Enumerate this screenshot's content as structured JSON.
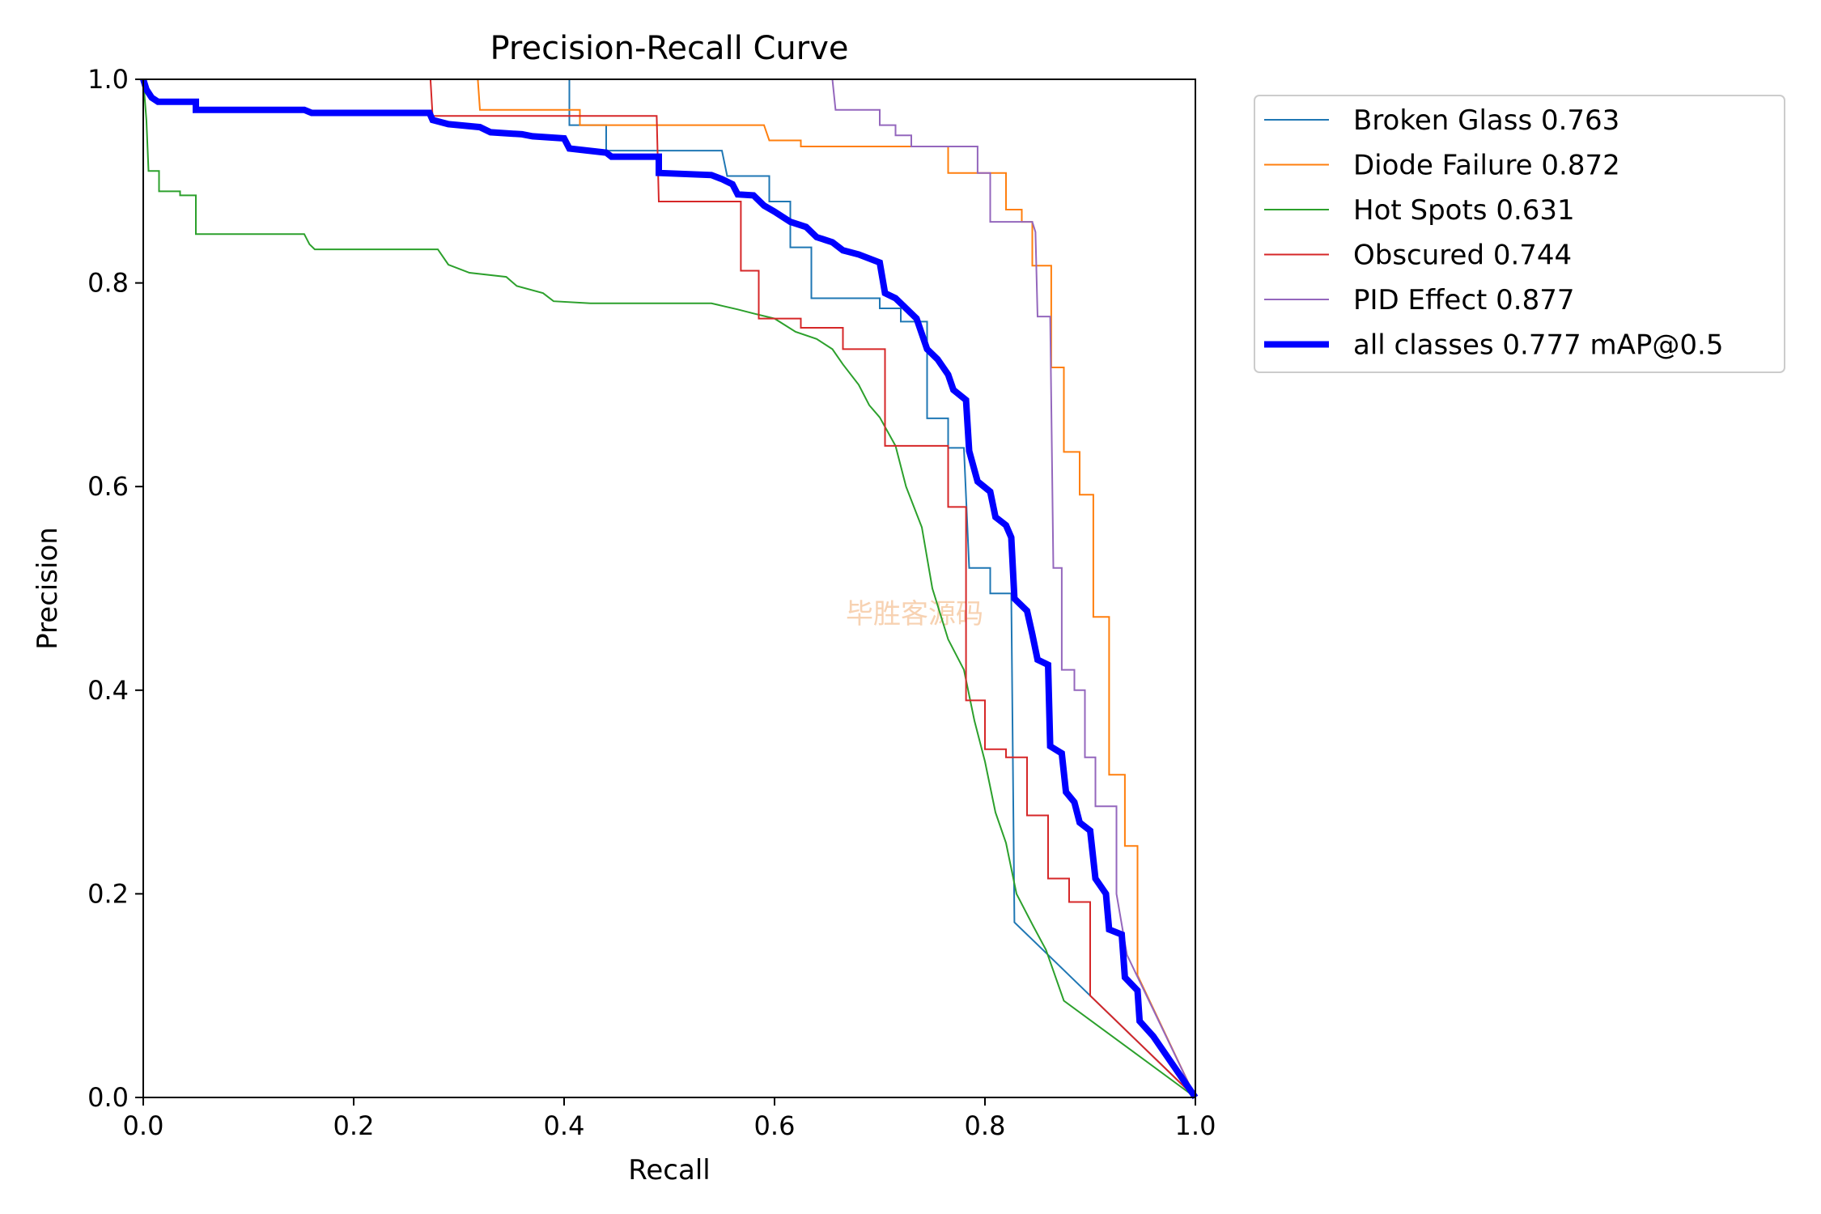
{
  "chart_data": {
    "type": "line",
    "title": "Precision-Recall Curve",
    "xlabel": "Recall",
    "ylabel": "Precision",
    "xlim": [
      0,
      1
    ],
    "ylim": [
      0,
      1
    ],
    "x_ticks": [
      "0.0",
      "0.2",
      "0.4",
      "0.6",
      "0.8",
      "1.0"
    ],
    "y_ticks": [
      "0.0",
      "0.2",
      "0.4",
      "0.6",
      "0.8",
      "1.0"
    ],
    "grid": false,
    "legend_position": "outside-top-right",
    "watermark": "毕胜客源码",
    "series": [
      {
        "name": "Broken Glass 0.763",
        "color": "#1f77b4",
        "width": 2,
        "points": [
          [
            0.0,
            1.0
          ],
          [
            0.4,
            1.0
          ],
          [
            0.405,
            1.0
          ],
          [
            0.405,
            0.955
          ],
          [
            0.44,
            0.955
          ],
          [
            0.44,
            0.93
          ],
          [
            0.55,
            0.93
          ],
          [
            0.555,
            0.905
          ],
          [
            0.595,
            0.905
          ],
          [
            0.595,
            0.88
          ],
          [
            0.615,
            0.88
          ],
          [
            0.615,
            0.835
          ],
          [
            0.635,
            0.835
          ],
          [
            0.635,
            0.785
          ],
          [
            0.7,
            0.785
          ],
          [
            0.7,
            0.775
          ],
          [
            0.72,
            0.775
          ],
          [
            0.72,
            0.762
          ],
          [
            0.745,
            0.762
          ],
          [
            0.745,
            0.667
          ],
          [
            0.765,
            0.667
          ],
          [
            0.765,
            0.638
          ],
          [
            0.78,
            0.638
          ],
          [
            0.785,
            0.52
          ],
          [
            0.805,
            0.52
          ],
          [
            0.805,
            0.495
          ],
          [
            0.825,
            0.495
          ],
          [
            0.828,
            0.172
          ],
          [
            0.9,
            0.1
          ],
          [
            1.0,
            0.0
          ]
        ]
      },
      {
        "name": "Diode Failure 0.872",
        "color": "#ff7f0e",
        "width": 2,
        "points": [
          [
            0.0,
            1.0
          ],
          [
            0.318,
            1.0
          ],
          [
            0.32,
            0.97
          ],
          [
            0.415,
            0.97
          ],
          [
            0.415,
            0.955
          ],
          [
            0.59,
            0.955
          ],
          [
            0.595,
            0.94
          ],
          [
            0.625,
            0.94
          ],
          [
            0.625,
            0.934
          ],
          [
            0.765,
            0.934
          ],
          [
            0.765,
            0.908
          ],
          [
            0.82,
            0.908
          ],
          [
            0.82,
            0.872
          ],
          [
            0.835,
            0.872
          ],
          [
            0.835,
            0.86
          ],
          [
            0.845,
            0.86
          ],
          [
            0.845,
            0.817
          ],
          [
            0.863,
            0.817
          ],
          [
            0.863,
            0.717
          ],
          [
            0.875,
            0.717
          ],
          [
            0.875,
            0.634
          ],
          [
            0.89,
            0.634
          ],
          [
            0.89,
            0.592
          ],
          [
            0.903,
            0.592
          ],
          [
            0.903,
            0.472
          ],
          [
            0.918,
            0.472
          ],
          [
            0.918,
            0.317
          ],
          [
            0.933,
            0.317
          ],
          [
            0.933,
            0.247
          ],
          [
            0.945,
            0.247
          ],
          [
            0.945,
            0.12
          ],
          [
            1.0,
            0.0
          ]
        ]
      },
      {
        "name": "Hot Spots 0.631",
        "color": "#2ca02c",
        "width": 2,
        "points": [
          [
            0.0,
            1.0
          ],
          [
            0.003,
            0.96
          ],
          [
            0.005,
            0.91
          ],
          [
            0.015,
            0.91
          ],
          [
            0.015,
            0.89
          ],
          [
            0.035,
            0.89
          ],
          [
            0.035,
            0.886
          ],
          [
            0.05,
            0.886
          ],
          [
            0.05,
            0.848
          ],
          [
            0.153,
            0.848
          ],
          [
            0.158,
            0.838
          ],
          [
            0.163,
            0.833
          ],
          [
            0.28,
            0.833
          ],
          [
            0.29,
            0.818
          ],
          [
            0.31,
            0.81
          ],
          [
            0.345,
            0.806
          ],
          [
            0.355,
            0.797
          ],
          [
            0.38,
            0.79
          ],
          [
            0.39,
            0.782
          ],
          [
            0.425,
            0.78
          ],
          [
            0.54,
            0.78
          ],
          [
            0.565,
            0.774
          ],
          [
            0.58,
            0.77
          ],
          [
            0.6,
            0.765
          ],
          [
            0.62,
            0.752
          ],
          [
            0.64,
            0.745
          ],
          [
            0.655,
            0.735
          ],
          [
            0.665,
            0.72
          ],
          [
            0.68,
            0.7
          ],
          [
            0.69,
            0.68
          ],
          [
            0.7,
            0.668
          ],
          [
            0.715,
            0.64
          ],
          [
            0.725,
            0.6
          ],
          [
            0.74,
            0.56
          ],
          [
            0.75,
            0.5
          ],
          [
            0.765,
            0.45
          ],
          [
            0.78,
            0.42
          ],
          [
            0.79,
            0.37
          ],
          [
            0.8,
            0.33
          ],
          [
            0.81,
            0.28
          ],
          [
            0.82,
            0.25
          ],
          [
            0.83,
            0.2
          ],
          [
            0.845,
            0.17
          ],
          [
            0.858,
            0.145
          ],
          [
            0.875,
            0.095
          ],
          [
            1.0,
            0.0
          ]
        ]
      },
      {
        "name": "Obscured 0.744",
        "color": "#d62728",
        "width": 2,
        "points": [
          [
            0.0,
            1.0
          ],
          [
            0.273,
            1.0
          ],
          [
            0.275,
            0.964
          ],
          [
            0.488,
            0.964
          ],
          [
            0.49,
            0.88
          ],
          [
            0.568,
            0.88
          ],
          [
            0.568,
            0.812
          ],
          [
            0.585,
            0.812
          ],
          [
            0.585,
            0.765
          ],
          [
            0.625,
            0.765
          ],
          [
            0.625,
            0.756
          ],
          [
            0.665,
            0.756
          ],
          [
            0.665,
            0.735
          ],
          [
            0.705,
            0.735
          ],
          [
            0.705,
            0.64
          ],
          [
            0.765,
            0.64
          ],
          [
            0.765,
            0.58
          ],
          [
            0.782,
            0.58
          ],
          [
            0.782,
            0.39
          ],
          [
            0.8,
            0.39
          ],
          [
            0.8,
            0.342
          ],
          [
            0.82,
            0.342
          ],
          [
            0.82,
            0.334
          ],
          [
            0.84,
            0.334
          ],
          [
            0.84,
            0.277
          ],
          [
            0.86,
            0.277
          ],
          [
            0.86,
            0.215
          ],
          [
            0.88,
            0.215
          ],
          [
            0.88,
            0.192
          ],
          [
            0.9,
            0.192
          ],
          [
            0.9,
            0.1
          ],
          [
            1.0,
            0.0
          ]
        ]
      },
      {
        "name": "PID Effect 0.877",
        "color": "#9467bd",
        "width": 2,
        "points": [
          [
            0.0,
            1.0
          ],
          [
            0.655,
            1.0
          ],
          [
            0.658,
            0.97
          ],
          [
            0.7,
            0.97
          ],
          [
            0.7,
            0.955
          ],
          [
            0.715,
            0.955
          ],
          [
            0.715,
            0.945
          ],
          [
            0.73,
            0.945
          ],
          [
            0.73,
            0.934
          ],
          [
            0.793,
            0.934
          ],
          [
            0.793,
            0.908
          ],
          [
            0.805,
            0.908
          ],
          [
            0.805,
            0.86
          ],
          [
            0.845,
            0.86
          ],
          [
            0.848,
            0.85
          ],
          [
            0.85,
            0.767
          ],
          [
            0.862,
            0.767
          ],
          [
            0.865,
            0.52
          ],
          [
            0.873,
            0.52
          ],
          [
            0.873,
            0.42
          ],
          [
            0.885,
            0.42
          ],
          [
            0.885,
            0.4
          ],
          [
            0.895,
            0.4
          ],
          [
            0.895,
            0.334
          ],
          [
            0.905,
            0.334
          ],
          [
            0.905,
            0.286
          ],
          [
            0.925,
            0.286
          ],
          [
            0.925,
            0.2
          ],
          [
            0.935,
            0.14
          ],
          [
            1.0,
            0.0
          ]
        ]
      },
      {
        "name": "all classes 0.777 mAP@0.5",
        "color": "#0000ff",
        "width": 8,
        "points": [
          [
            0.0,
            1.0
          ],
          [
            0.003,
            0.99
          ],
          [
            0.008,
            0.982
          ],
          [
            0.014,
            0.978
          ],
          [
            0.05,
            0.978
          ],
          [
            0.05,
            0.97
          ],
          [
            0.153,
            0.97
          ],
          [
            0.16,
            0.967
          ],
          [
            0.272,
            0.967
          ],
          [
            0.275,
            0.96
          ],
          [
            0.29,
            0.956
          ],
          [
            0.32,
            0.953
          ],
          [
            0.33,
            0.948
          ],
          [
            0.36,
            0.946
          ],
          [
            0.37,
            0.944
          ],
          [
            0.4,
            0.942
          ],
          [
            0.405,
            0.932
          ],
          [
            0.44,
            0.928
          ],
          [
            0.445,
            0.924
          ],
          [
            0.49,
            0.924
          ],
          [
            0.49,
            0.908
          ],
          [
            0.54,
            0.906
          ],
          [
            0.55,
            0.902
          ],
          [
            0.56,
            0.897
          ],
          [
            0.565,
            0.887
          ],
          [
            0.58,
            0.886
          ],
          [
            0.59,
            0.876
          ],
          [
            0.6,
            0.87
          ],
          [
            0.615,
            0.86
          ],
          [
            0.63,
            0.855
          ],
          [
            0.64,
            0.845
          ],
          [
            0.655,
            0.84
          ],
          [
            0.665,
            0.832
          ],
          [
            0.68,
            0.828
          ],
          [
            0.7,
            0.82
          ],
          [
            0.705,
            0.79
          ],
          [
            0.715,
            0.785
          ],
          [
            0.725,
            0.775
          ],
          [
            0.735,
            0.765
          ],
          [
            0.745,
            0.735
          ],
          [
            0.755,
            0.725
          ],
          [
            0.765,
            0.71
          ],
          [
            0.77,
            0.695
          ],
          [
            0.782,
            0.685
          ],
          [
            0.785,
            0.635
          ],
          [
            0.793,
            0.605
          ],
          [
            0.805,
            0.595
          ],
          [
            0.81,
            0.57
          ],
          [
            0.82,
            0.562
          ],
          [
            0.825,
            0.55
          ],
          [
            0.828,
            0.49
          ],
          [
            0.84,
            0.478
          ],
          [
            0.845,
            0.455
          ],
          [
            0.85,
            0.43
          ],
          [
            0.86,
            0.425
          ],
          [
            0.862,
            0.345
          ],
          [
            0.873,
            0.338
          ],
          [
            0.877,
            0.3
          ],
          [
            0.885,
            0.29
          ],
          [
            0.89,
            0.27
          ],
          [
            0.9,
            0.262
          ],
          [
            0.905,
            0.215
          ],
          [
            0.915,
            0.2
          ],
          [
            0.918,
            0.165
          ],
          [
            0.93,
            0.16
          ],
          [
            0.933,
            0.118
          ],
          [
            0.945,
            0.105
          ],
          [
            0.947,
            0.075
          ],
          [
            0.96,
            0.06
          ],
          [
            1.0,
            0.0
          ]
        ]
      }
    ]
  }
}
